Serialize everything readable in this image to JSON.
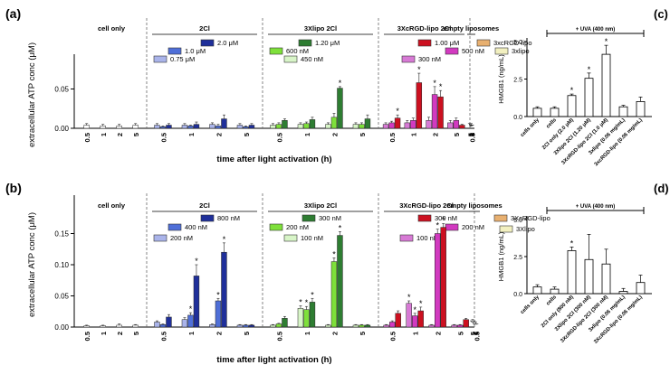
{
  "panel_labels": {
    "a": "(a)",
    "b": "(b)",
    "c": "(c)",
    "d": "(d)"
  },
  "colors": {
    "cell_only": "#ffffff",
    "cl_2_1": "#1f2f9a",
    "cl_2_2": "#4f6fd8",
    "cl_2_3": "#aab4ea",
    "cl_3_1": "#2e7d32",
    "cl_3_2": "#7ee03a",
    "cl_3_3": "#d8f5c8",
    "cl_4_1": "#cc1020",
    "cl_4_2": "#d23ac0",
    "cl_4_3": "#d77ad5",
    "empty_1": "#e8b070",
    "empty_2": "#f2f0c0"
  },
  "chart_data": [
    {
      "panel": "(a)",
      "type": "bar",
      "xlabel": "time after light activation (h)",
      "ylabel": "extracellular ATP conc (μM)",
      "ylim": [
        0,
        0.085
      ],
      "yticks": [
        "0.00",
        "0.05"
      ],
      "ytick_values": [
        0,
        0.05
      ],
      "x_tick_labels": [
        "0.5",
        "1",
        "2",
        "5"
      ],
      "groups": [
        {
          "name": "cell only",
          "key": "g1",
          "legend": [],
          "series": [
            {
              "color_key": "cell_only",
              "values": [
                0.004,
                0.003,
                0.003,
                0.004
              ],
              "errors": [
                0.002,
                0.002,
                0.002,
                0.002
              ],
              "stars": [
                0,
                0,
                0,
                0
              ]
            }
          ]
        },
        {
          "name": "2Cl",
          "key": "g2",
          "legend": [
            {
              "label": "2.0 μM",
              "color_key": "cl_2_1"
            },
            {
              "label": "1.0 μM",
              "color_key": "cl_2_2"
            },
            {
              "label": "0.75 μM",
              "color_key": "cl_2_3"
            }
          ],
          "series": [
            {
              "color_key": "cl_2_3",
              "values": [
                0.004,
                0.004,
                0.005,
                0.004
              ],
              "errors": [
                0.002,
                0.002,
                0.002,
                0.002
              ],
              "stars": [
                0,
                0,
                0,
                0
              ]
            },
            {
              "color_key": "cl_2_2",
              "values": [
                0.002,
                0.003,
                0.003,
                0.002
              ],
              "errors": [
                0.001,
                0.001,
                0.002,
                0.001
              ],
              "stars": [
                0,
                0,
                0,
                0
              ]
            },
            {
              "color_key": "cl_2_1",
              "values": [
                0.004,
                0.005,
                0.012,
                0.004
              ],
              "errors": [
                0.002,
                0.003,
                0.005,
                0.002
              ],
              "stars": [
                0,
                0,
                0,
                0
              ]
            }
          ]
        },
        {
          "name": "3Xlipo 2Cl",
          "key": "g3",
          "legend": [
            {
              "label": "1.20 μM",
              "color_key": "cl_3_1"
            },
            {
              "label": "600 nM",
              "color_key": "cl_3_2"
            },
            {
              "label": "450 nM",
              "color_key": "cl_3_3"
            }
          ],
          "series": [
            {
              "color_key": "cl_3_3",
              "values": [
                0.004,
                0.005,
                0.005,
                0.005
              ],
              "errors": [
                0.002,
                0.002,
                0.002,
                0.002
              ],
              "stars": [
                0,
                0,
                0,
                0
              ]
            },
            {
              "color_key": "cl_3_2",
              "values": [
                0.005,
                0.006,
                0.014,
                0.005
              ],
              "errors": [
                0.002,
                0.002,
                0.005,
                0.002
              ],
              "stars": [
                0,
                0,
                0,
                0
              ]
            },
            {
              "color_key": "cl_3_1",
              "values": [
                0.01,
                0.011,
                0.051,
                0.012
              ],
              "errors": [
                0.002,
                0.003,
                0.002,
                0.005
              ],
              "stars": [
                0,
                0,
                1,
                0
              ]
            }
          ]
        },
        {
          "name": "3XcRGD-lipo 2Cl",
          "key": "g4",
          "legend": [
            {
              "label": "1.00 μM",
              "color_key": "cl_4_1"
            },
            {
              "label": "500 nM",
              "color_key": "cl_4_2"
            },
            {
              "label": "300 nM",
              "color_key": "cl_4_3"
            }
          ],
          "series": [
            {
              "color_key": "cl_4_3",
              "values": [
                0.005,
                0.007,
                0.01,
                0.007
              ],
              "errors": [
                0.002,
                0.003,
                0.004,
                0.003
              ],
              "stars": [
                0,
                0,
                0,
                0
              ]
            },
            {
              "color_key": "cl_4_2",
              "values": [
                0.007,
                0.01,
                0.043,
                0.01
              ],
              "errors": [
                0.002,
                0.003,
                0.01,
                0.003
              ],
              "stars": [
                0,
                0,
                1,
                0
              ]
            },
            {
              "color_key": "cl_4_1",
              "values": [
                0.013,
                0.058,
                0.04,
                0.004
              ],
              "errors": [
                0.004,
                0.012,
                0.008,
                0.001
              ],
              "stars": [
                1,
                1,
                1,
                0
              ]
            }
          ]
        },
        {
          "name": "empty liposomes",
          "key": "g5",
          "legend": [
            {
              "label": "3xcRGD-lipo",
              "color_key": "empty_1"
            },
            {
              "label": "3xlipo",
              "color_key": "empty_2"
            }
          ],
          "series": [
            {
              "color_key": "empty_1",
              "values": [
                0.003,
                0.003,
                0.004,
                0.003
              ],
              "errors": [
                0.001,
                0.001,
                0.002,
                0.001
              ],
              "stars": [
                0,
                0,
                0,
                0
              ]
            },
            {
              "color_key": "empty_2",
              "values": [
                0.003,
                0.002,
                0.004,
                0.004
              ],
              "errors": [
                0.001,
                0.001,
                0.002,
                0.002
              ],
              "stars": [
                0,
                0,
                0,
                0
              ]
            }
          ]
        }
      ]
    },
    {
      "panel": "(b)",
      "type": "bar",
      "xlabel": "time after light activation (h)",
      "ylabel": "extracellular ATP conc (μM)",
      "ylim": [
        0,
        0.2
      ],
      "yticks": [
        "0.00",
        "0.05",
        "0.10",
        "0.15"
      ],
      "ytick_values": [
        0,
        0.05,
        0.1,
        0.15
      ],
      "x_tick_labels": [
        "0.5",
        "1",
        "2",
        "5"
      ],
      "groups": [
        {
          "name": "cell only",
          "key": "g1",
          "legend": [],
          "series": [
            {
              "color_key": "cell_only",
              "values": [
                0.002,
                0.002,
                0.003,
                0.003
              ],
              "errors": [
                0.001,
                0.001,
                0.002,
                0.001
              ],
              "stars": [
                0,
                0,
                0,
                0
              ]
            }
          ]
        },
        {
          "name": "2Cl",
          "key": "g2",
          "legend": [
            {
              "label": "800 nM",
              "color_key": "cl_2_1"
            },
            {
              "label": "400 nM",
              "color_key": "cl_2_2"
            },
            {
              "label": "200 nM",
              "color_key": "cl_2_3"
            }
          ],
          "series": [
            {
              "color_key": "cl_2_3",
              "values": [
                0.008,
                0.012,
                0.004,
                0.003
              ],
              "errors": [
                0.002,
                0.003,
                0.001,
                0.001
              ],
              "stars": [
                0,
                0,
                0,
                0
              ]
            },
            {
              "color_key": "cl_2_2",
              "values": [
                0.004,
                0.019,
                0.042,
                0.003
              ],
              "errors": [
                0.001,
                0.004,
                0.004,
                0.001
              ],
              "stars": [
                0,
                1,
                1,
                0
              ]
            },
            {
              "color_key": "cl_2_1",
              "values": [
                0.016,
                0.082,
                0.12,
                0.003
              ],
              "errors": [
                0.004,
                0.018,
                0.015,
                0.001
              ],
              "stars": [
                0,
                1,
                1,
                0
              ]
            }
          ]
        },
        {
          "name": "3Xlipo 2Cl",
          "key": "g3",
          "legend": [
            {
              "label": "300 nM",
              "color_key": "cl_3_1"
            },
            {
              "label": "200 nM",
              "color_key": "cl_3_2"
            },
            {
              "label": "100 nM",
              "color_key": "cl_3_3"
            }
          ],
          "series": [
            {
              "color_key": "cl_3_3",
              "values": [
                0.003,
                0.03,
                0.003,
                0.003
              ],
              "errors": [
                0.001,
                0.004,
                0.001,
                0.001
              ],
              "stars": [
                0,
                1,
                0,
                0
              ]
            },
            {
              "color_key": "cl_3_2",
              "values": [
                0.005,
                0.028,
                0.105,
                0.003
              ],
              "errors": [
                0.001,
                0.005,
                0.006,
                0.001
              ],
              "stars": [
                0,
                1,
                1,
                0
              ]
            },
            {
              "color_key": "cl_3_1",
              "values": [
                0.014,
                0.04,
                0.147,
                0.003
              ],
              "errors": [
                0.003,
                0.006,
                0.006,
                0.001
              ],
              "stars": [
                0,
                1,
                1,
                0
              ]
            }
          ]
        },
        {
          "name": "3XcRGD-lipo 2Cl",
          "key": "g4",
          "legend": [
            {
              "label": "300 nM",
              "color_key": "cl_4_1"
            },
            {
              "label": "200 nM",
              "color_key": "cl_4_2"
            },
            {
              "label": "100 nM",
              "color_key": "cl_4_3"
            }
          ],
          "series": [
            {
              "color_key": "cl_4_3",
              "values": [
                0.003,
                0.038,
                0.003,
                0.003
              ],
              "errors": [
                0.001,
                0.004,
                0.001,
                0.001
              ],
              "stars": [
                0,
                1,
                0,
                0
              ]
            },
            {
              "color_key": "cl_4_2",
              "values": [
                0.008,
                0.018,
                0.15,
                0.003
              ],
              "errors": [
                0.002,
                0.004,
                0.007,
                0.001
              ],
              "stars": [
                0,
                1,
                1,
                0
              ]
            },
            {
              "color_key": "cl_4_1",
              "values": [
                0.022,
                0.026,
                0.16,
                0.012
              ],
              "errors": [
                0.004,
                0.006,
                0.006,
                0.002
              ],
              "stars": [
                0,
                1,
                1,
                0
              ]
            }
          ]
        },
        {
          "name": "empty liposomes",
          "key": "g5",
          "legend": [
            {
              "label": "3XcRGD-lipo",
              "color_key": "empty_1"
            },
            {
              "label": "3Xlipo",
              "color_key": "empty_2"
            }
          ],
          "series": [
            {
              "color_key": "empty_1",
              "values": [
                0.004,
                0.006,
                0.008,
                0.006
              ],
              "errors": [
                0.001,
                0.002,
                0.002,
                0.002
              ],
              "stars": [
                0,
                0,
                0,
                0
              ]
            },
            {
              "color_key": "empty_2",
              "values": [
                0.004,
                0.004,
                0.01,
                0.008
              ],
              "errors": [
                0.001,
                0.001,
                0.002,
                0.002
              ],
              "stars": [
                0,
                0,
                0,
                0
              ]
            }
          ]
        }
      ]
    },
    {
      "panel": "(c)",
      "type": "bar",
      "ylabel": "HMGB1 (ng/mL)",
      "ylim": [
        0,
        5
      ],
      "yticks": [
        "0.0",
        "2.5",
        "5.0"
      ],
      "ytick_values": [
        0,
        2.5,
        5
      ],
      "bracket_label": "+ UVA (400 nm)",
      "categories": [
        "cells only",
        "cells",
        "2Cl only (2.0 μM)",
        "3Xlipo 2Cl (1.20 μM)",
        "3XcRGD-lipo 2Cl (1.0 μM)",
        "3xlipo (0.06 mg/mL)",
        "3xcRGD-lipo (0.06 mg/mL)"
      ],
      "values": [
        0.55,
        0.55,
        1.4,
        2.55,
        4.15,
        0.65,
        1.0
      ],
      "errors": [
        0.1,
        0.1,
        0.1,
        0.35,
        0.6,
        0.1,
        0.3
      ],
      "stars": [
        0,
        0,
        1,
        1,
        1,
        0,
        0
      ]
    },
    {
      "panel": "(d)",
      "type": "bar",
      "ylabel": "HMGB1 (ng/mL)",
      "ylim": [
        0,
        5
      ],
      "yticks": [
        "0.0",
        "2.5",
        "5.0"
      ],
      "ytick_values": [
        0,
        2.5,
        5
      ],
      "bracket_label": "+ UVA (400 nm)",
      "categories": [
        "cells only",
        "cells",
        "2Cl only (800 nM)",
        "3Xlipo 2Cl (300 nM)",
        "3XcRGD-lipo 2Cl (300 nM)",
        "3xlipo (0.06 mg/mL)",
        "3XcRGD-lipo (0.06 mg/mL)"
      ],
      "values": [
        0.45,
        0.3,
        2.9,
        2.3,
        2.0,
        0.15,
        0.75
      ],
      "errors": [
        0.15,
        0.15,
        0.25,
        1.7,
        1.0,
        0.2,
        0.5
      ],
      "stars": [
        0,
        0,
        1,
        0,
        0,
        0,
        0
      ]
    }
  ]
}
